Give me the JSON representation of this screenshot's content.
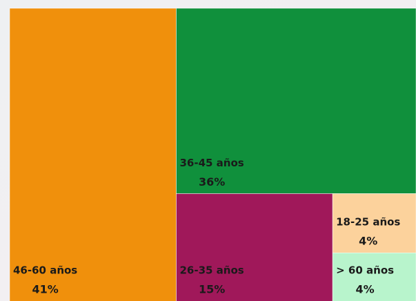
{
  "chart_data": {
    "type": "treemap",
    "categories": [
      "46-60 años",
      "36-45 años",
      "26-35 años",
      "18-25 años",
      "> 60 años"
    ],
    "values": [
      41,
      36,
      15,
      4,
      4
    ],
    "value_labels": [
      "41%",
      "36%",
      "15%",
      "4%",
      "4%"
    ],
    "colors": [
      "#f0900c",
      "#10903c",
      "#a0185a",
      "#fcd29c",
      "#b8f4cc"
    ]
  }
}
